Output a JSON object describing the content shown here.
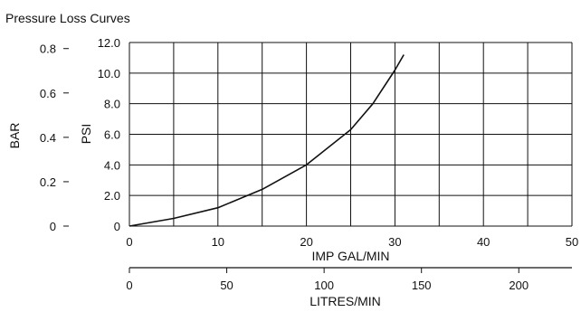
{
  "chart_data": {
    "type": "line",
    "title": "Pressure Loss Curves",
    "x_axis": {
      "label": "IMP GAL/MIN",
      "lim": [
        0,
        50
      ],
      "ticks": [
        0,
        10,
        20,
        30,
        40,
        50
      ],
      "grid_step": 5
    },
    "x2_axis": {
      "label": "LITRES/MIN",
      "ticks": [
        0,
        50,
        100,
        150,
        200
      ],
      "conversion_per_imp_gal": 4.546
    },
    "y_axis": {
      "label": "PSI",
      "lim": [
        0,
        12
      ],
      "ticks": [
        "0",
        "2.0",
        "4.0",
        "6.0",
        "8.0",
        "10.0",
        "12.0"
      ],
      "tick_values": [
        0,
        2,
        4,
        6,
        8,
        10,
        12
      ]
    },
    "y2_axis": {
      "label": "BAR",
      "ticks": [
        "0",
        "0.2",
        "0.4",
        "0.6",
        "0.8"
      ],
      "tick_values": [
        0,
        0.2,
        0.4,
        0.6,
        0.8
      ]
    },
    "grid": true,
    "series": [
      {
        "x": [
          0,
          5,
          10,
          15,
          20,
          25,
          27.5,
          30,
          31
        ],
        "y": [
          0,
          0.5,
          1.2,
          2.4,
          4.0,
          6.3,
          8.0,
          10.2,
          11.2
        ]
      }
    ],
    "color": "#111111"
  }
}
